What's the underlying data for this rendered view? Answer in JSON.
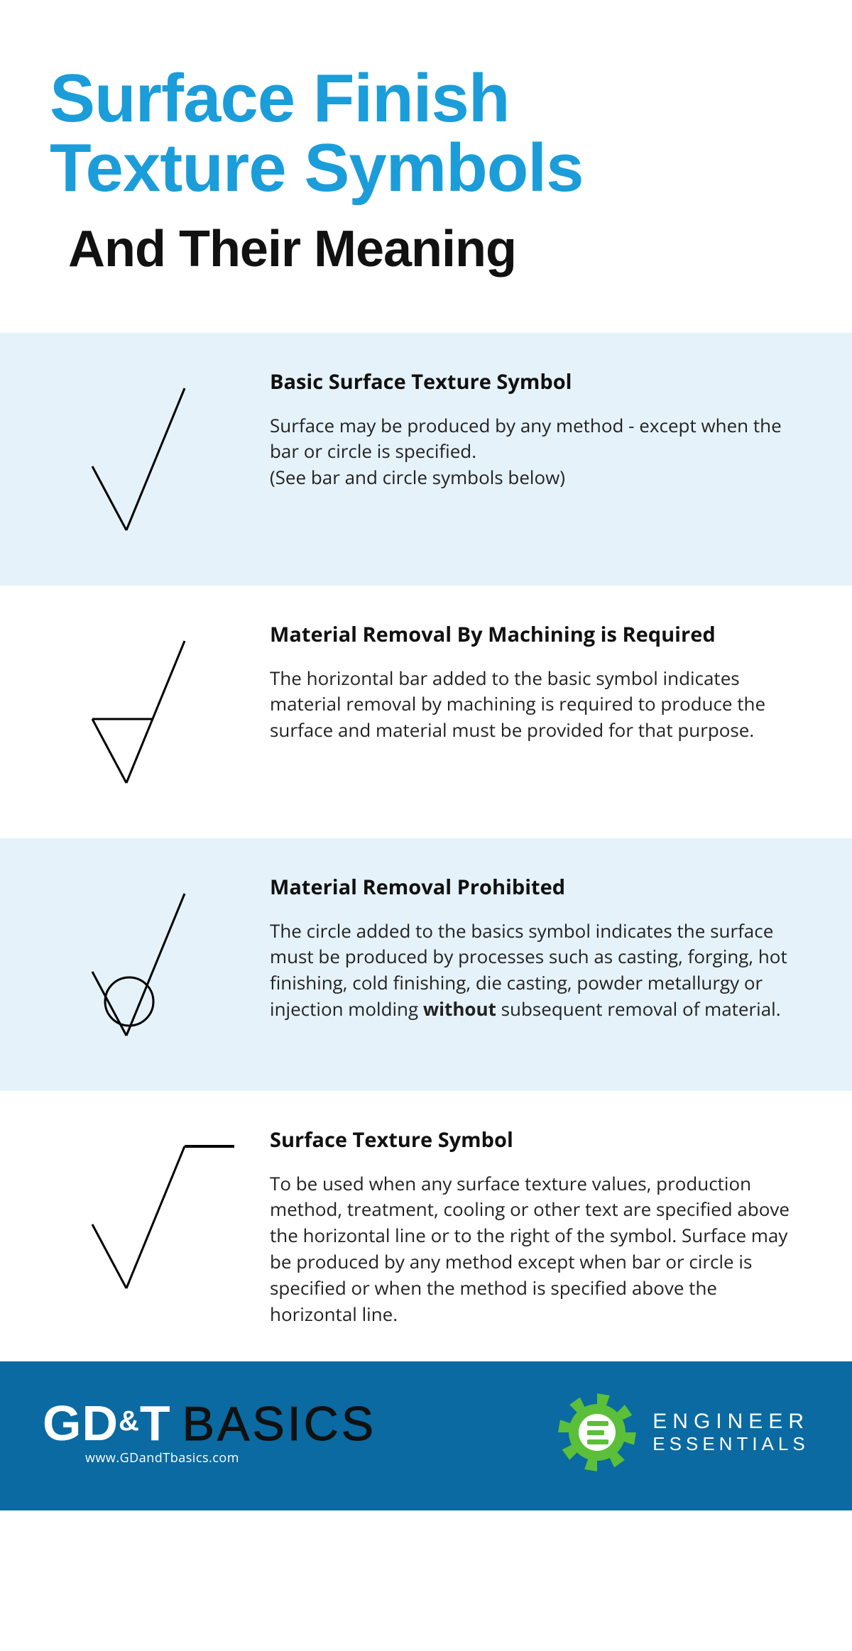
{
  "colors": {
    "accent": "#1b9dd9",
    "black": "#111111",
    "row_alt": "#e5f2f9",
    "row_plain": "#ffffff",
    "footer_bg": "#0a6aa1",
    "gear_green": "#5bbf3a",
    "stroke": "#000000"
  },
  "header": {
    "title_line1": "Surface Finish",
    "title_line2": "Texture Symbols",
    "subtitle": "And Their Meaning"
  },
  "symbols": [
    {
      "id": "basic",
      "heading": "Basic Surface Texture Symbol",
      "body_html": "Surface may be produced by any method - except when the bar or circle is specified.<br>(See bar and circle symbols below)",
      "bg": "alt",
      "svg": {
        "type": "check",
        "bar": false,
        "circle": false,
        "tail": false
      }
    },
    {
      "id": "machining-required",
      "heading": "Material Removal By Machining is Required",
      "body_html": "The horizontal bar added to the basic symbol indicates material removal by machining is required to produce the surface and material must be provided for that purpose.",
      "bg": "plain",
      "svg": {
        "type": "check",
        "bar": true,
        "circle": false,
        "tail": false
      }
    },
    {
      "id": "removal-prohibited",
      "heading": "Material Removal Prohibited",
      "body_html": "The circle added to the basics symbol indicates the surface must be produced by processes such as casting, forging, hot finishing, cold finishing, die casting, powder metallurgy or injection molding <b>without</b> subsequent removal of material.",
      "bg": "alt",
      "svg": {
        "type": "check",
        "bar": false,
        "circle": true,
        "tail": false
      }
    },
    {
      "id": "surface-texture",
      "heading": "Surface Texture Symbol",
      "body_html": "To be used when any surface texture values, production method, treatment, cooling or other text are specified above the horizontal line or to the right of the symbol. Surface may be produced by any method except when bar or circle is specified or when the method is specified above the horizontal line.",
      "bg": "plain",
      "svg": {
        "type": "check",
        "bar": false,
        "circle": false,
        "tail": true
      }
    }
  ],
  "footer": {
    "left_brand_1": "GD",
    "left_brand_amp": "&",
    "left_brand_2": "T",
    "left_brand_word": "BASICS",
    "left_url": "www.GDandTbasics.com",
    "right_line1": "ENGINEER",
    "right_line2": "ESSENTIALS"
  },
  "style": {
    "stroke_width": 3,
    "symbol_viewbox": "0 0 200 240"
  }
}
